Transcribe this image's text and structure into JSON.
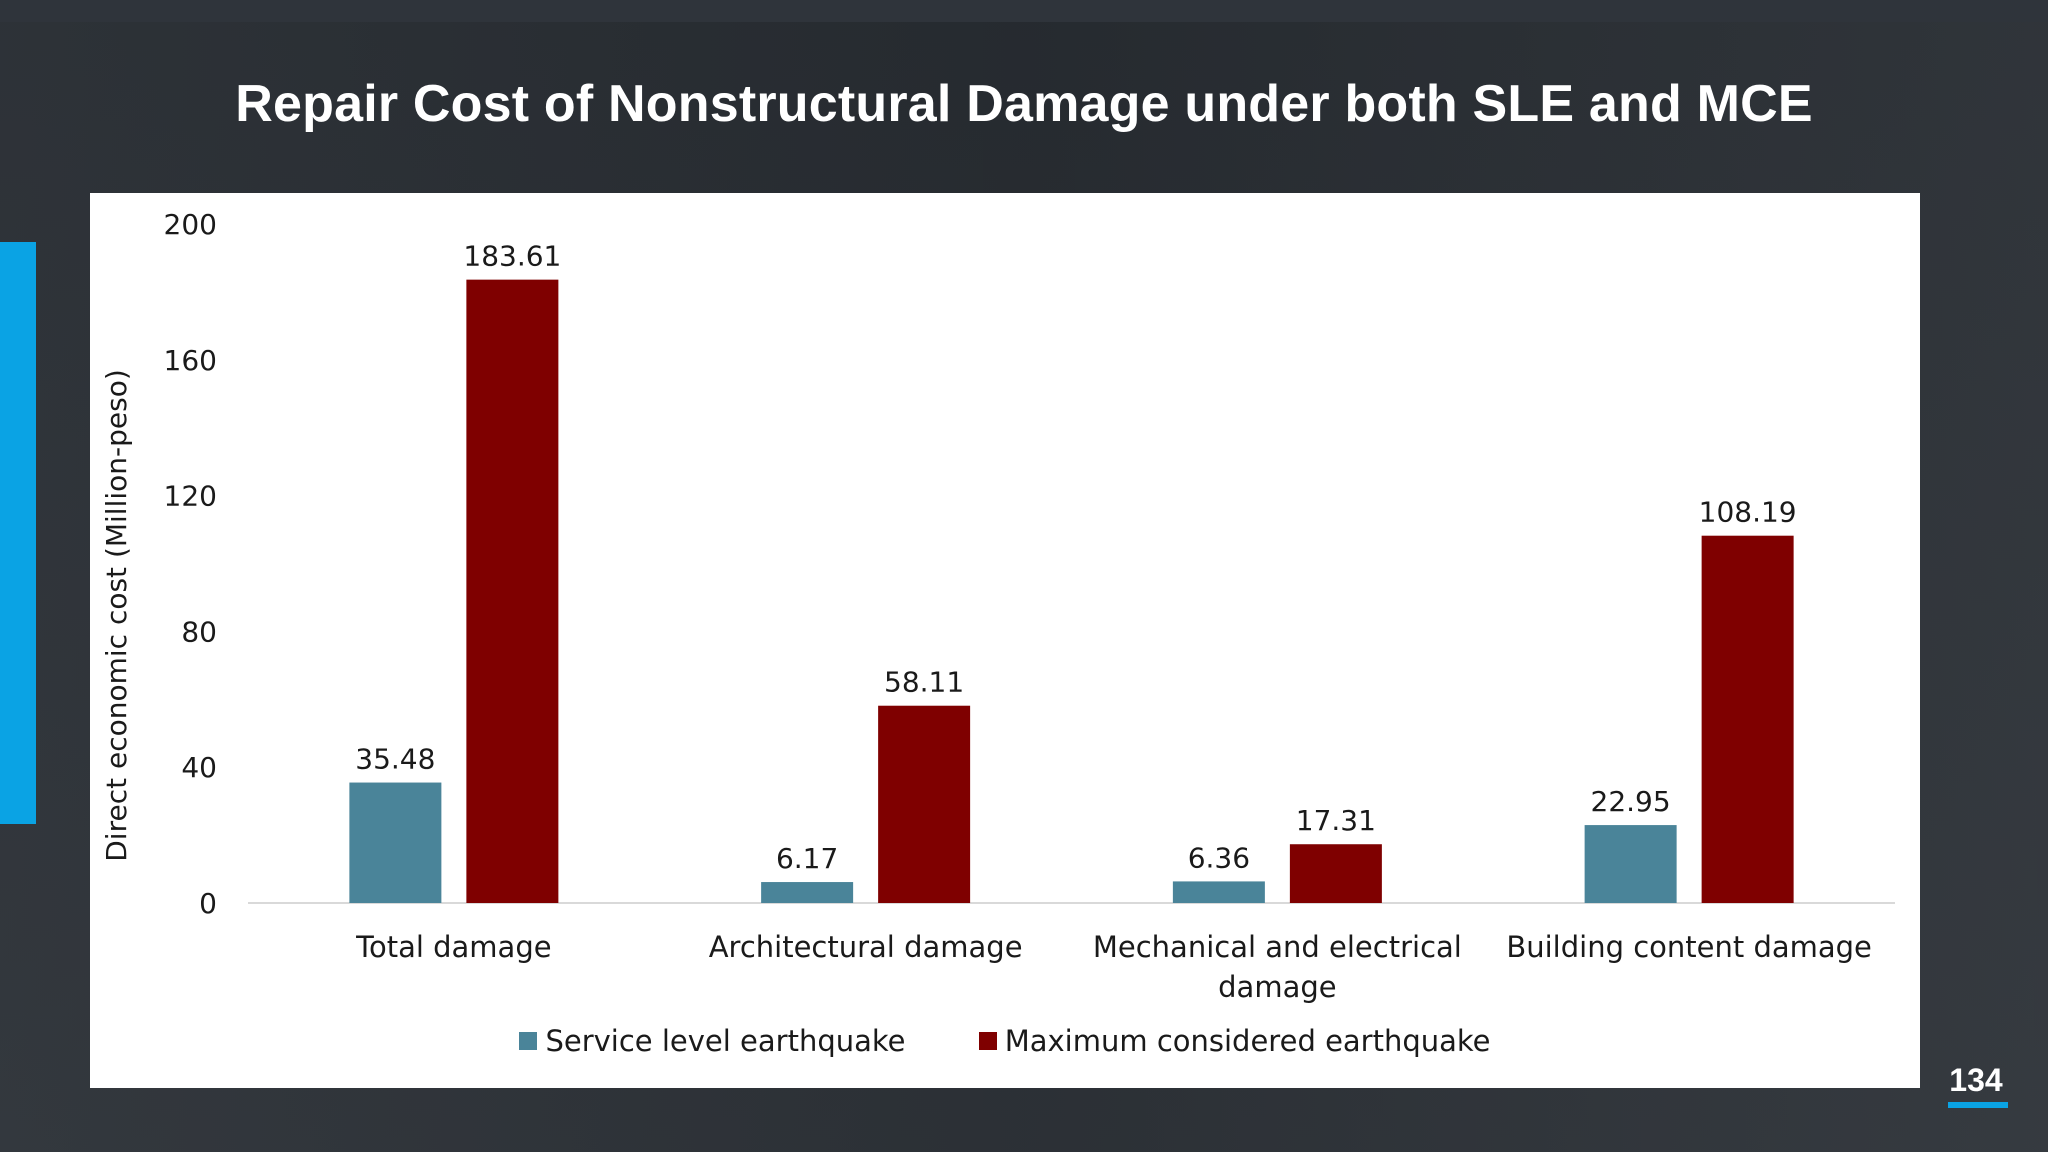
{
  "slide": {
    "title": "Repair Cost of Nonstructural Damage under both SLE and MCE",
    "page_number": "134"
  },
  "colors": {
    "background": "#2b3036",
    "accent": "#0aa3e4",
    "series_sle": "#4a8499",
    "series_mce": "#7f0000"
  },
  "chart_data": {
    "type": "bar",
    "title": "",
    "ylabel": "Direct economic cost (Million-peso)",
    "xlabel": "",
    "ylim": [
      0,
      200
    ],
    "yticks": [
      0,
      40,
      80,
      120,
      160,
      200
    ],
    "grid": false,
    "legend_position": "bottom",
    "categories": [
      [
        "Total damage"
      ],
      [
        "Architectural damage"
      ],
      [
        "Mechanical and electrical",
        "damage"
      ],
      [
        "Building content damage"
      ]
    ],
    "series": [
      {
        "name": "Service level earthquake",
        "color": "#4a8499",
        "values": [
          35.48,
          6.17,
          6.36,
          22.95
        ],
        "labels": [
          "35.48",
          "6.17",
          "6.36",
          "22.95"
        ]
      },
      {
        "name": "Maximum considered earthquake",
        "color": "#7f0000",
        "values": [
          183.61,
          58.11,
          17.31,
          108.19
        ],
        "labels": [
          "183.61",
          "58.11",
          "17.31",
          "108.19"
        ]
      }
    ]
  }
}
